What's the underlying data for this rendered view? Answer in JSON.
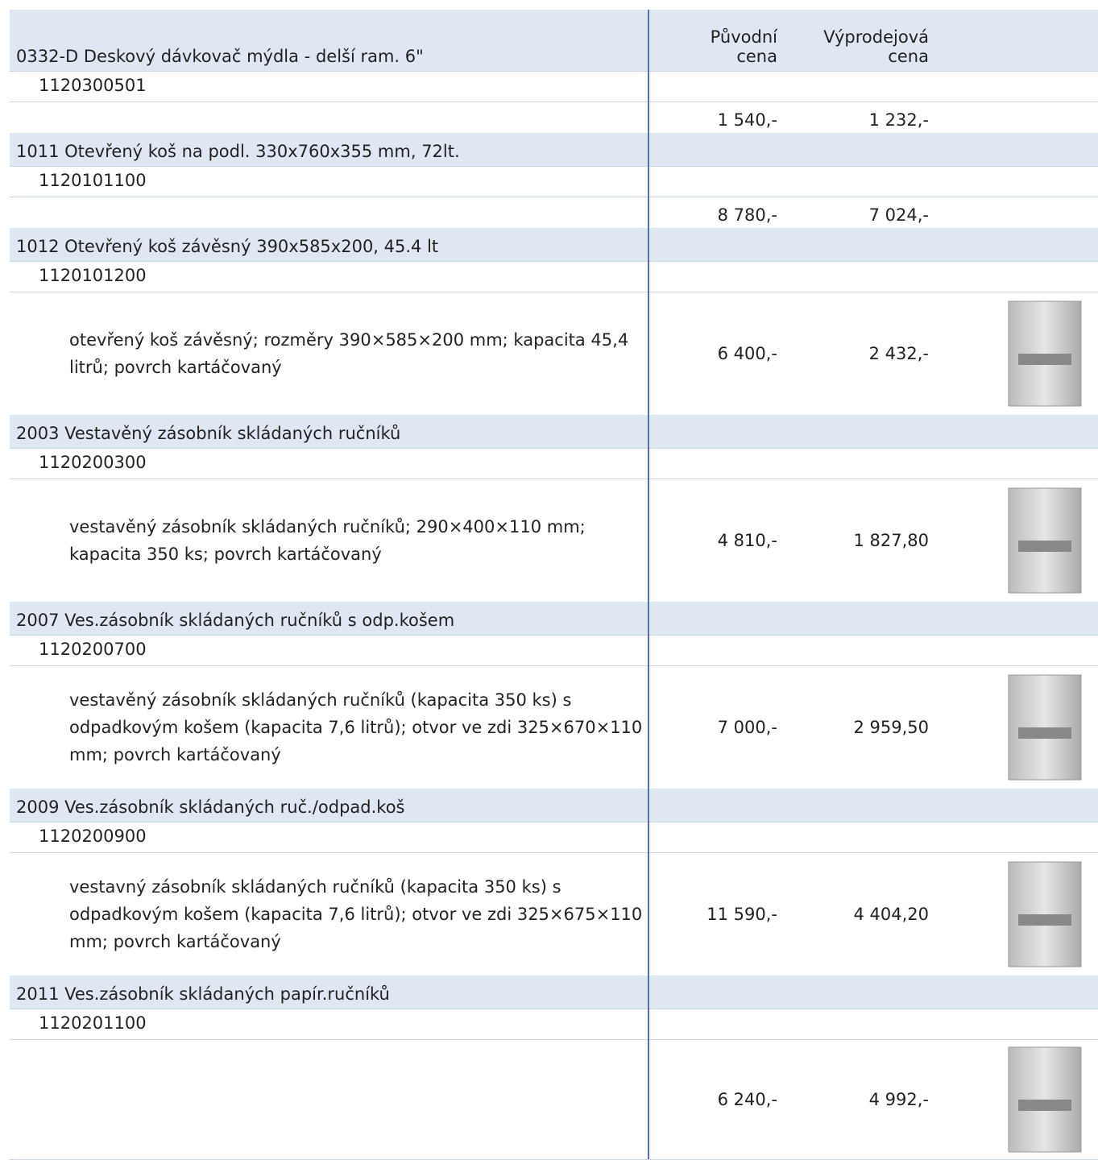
{
  "header": {
    "col_original": "Původní cena",
    "col_sale": "Výprodejová cena"
  },
  "products": [
    {
      "name": "0332-D Deskový dávkovač mýdla - delší ram. 6\"",
      "id": "1120300501",
      "price_original": "1 540,-",
      "price_sale": "1 232,-"
    },
    {
      "name": "1011 Otevřený koš na podl. 330x760x355 mm, 72lt.",
      "id": "1120101100",
      "price_original": "8 780,-",
      "price_sale": "7 024,-"
    },
    {
      "name": "1012 Otevřený koš závěsný 390x585x200, 45.4 lt",
      "id": "1120101200",
      "description": "otevřený koš závěsný; rozměry 390×585×200 mm; kapacita 45,4 litrů; povrch kartáčovaný",
      "price_original": "6 400,-",
      "price_sale": "2 432,-"
    },
    {
      "name": "2003 Vestavěný zásobník skládaných ručníků",
      "id": "1120200300",
      "description": "vestavěný zásobník skládaných ručníků; 290×400×110 mm; kapacita 350 ks; povrch kartáčovaný",
      "price_original": "4 810,-",
      "price_sale": "1 827,80"
    },
    {
      "name": "2007 Ves.zásobník skládaných ručníků s odp.košem",
      "id": "1120200700",
      "description": "vestavěný zásobník skládaných ručníků (kapacita 350 ks) s odpadkovým košem (kapacita 7,6 litrů); otvor ve zdi 325×670×110 mm; povrch kartáčovaný",
      "price_original": "7 000,-",
      "price_sale": "2 959,50"
    },
    {
      "name": "2009 Ves.zásobník skládaných ruč./odpad.koš",
      "id": "1120200900",
      "description": "vestavný zásobník skládaných ručníků (kapacita 350 ks) s odpadkovým košem (kapacita 7,6 litrů); otvor ve zdi 325×675×110 mm; povrch kartáčovaný",
      "price_original": "11 590,-",
      "price_sale": "4 404,20"
    },
    {
      "name": "2011 Ves.zásobník skládaných papír.ručníků",
      "id": "1120201100",
      "price_original": "6 240,-",
      "price_sale": "4 992,-"
    }
  ]
}
